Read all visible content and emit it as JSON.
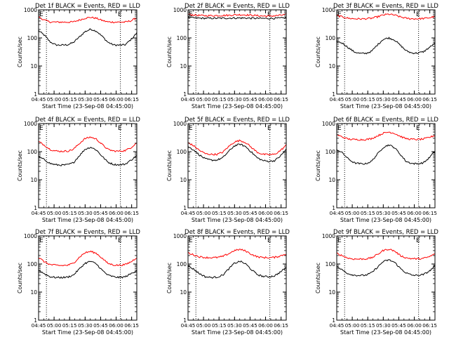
{
  "chart_data": [
    {
      "type": "line",
      "title": "Det 1f BLACK = Events, RED = LLD",
      "xlabel": "Start Time (23-Sep-08 04:45:00)",
      "ylabel": "Counts/sec",
      "x_ticks": [
        "04:45",
        "05:00",
        "05:15",
        "05:30",
        "05:45",
        "06:00",
        "06:15"
      ],
      "y_ticks": [
        "1",
        "10",
        "100",
        "1000"
      ],
      "ylim": [
        1,
        1000
      ],
      "yscale": "log",
      "grid": false,
      "markers": [
        "E",
        "E"
      ],
      "series": [
        {
          "color": "#000000",
          "values": [
            180,
            125,
            72,
            56,
            55,
            57,
            68,
            105,
            165,
            205,
            175,
            115,
            70,
            56,
            55,
            57,
            88,
            150
          ]
        },
        {
          "color": "#ff0000",
          "values": [
            560,
            430,
            370,
            365,
            365,
            365,
            370,
            430,
            500,
            540,
            500,
            420,
            370,
            365,
            365,
            365,
            410,
            520
          ]
        }
      ]
    },
    {
      "type": "line",
      "title": "Det 2f BLACK = Events, RED = LLD",
      "xlabel": "Start Time (23-Sep-08 04:45:00)",
      "ylabel": "Counts/sec",
      "x_ticks": [
        "04:45",
        "05:00",
        "05:15",
        "05:30",
        "05:45",
        "06:00",
        "06:15"
      ],
      "y_ticks": [
        "1",
        "10",
        "100",
        "1000"
      ],
      "ylim": [
        1,
        1000
      ],
      "yscale": "log",
      "grid": false,
      "markers": [
        "E",
        "E"
      ],
      "series": [
        {
          "color": "#000000",
          "values": [
            540,
            515,
            505,
            500,
            500,
            500,
            505,
            505,
            510,
            512,
            508,
            502,
            498,
            495,
            495,
            500,
            505,
            525
          ]
        },
        {
          "color": "#ff0000",
          "values": [
            690,
            650,
            630,
            620,
            620,
            625,
            630,
            640,
            660,
            670,
            660,
            640,
            620,
            600,
            600,
            610,
            640,
            680
          ]
        }
      ]
    },
    {
      "type": "line",
      "title": "Det 3f BLACK = Events, RED = LLD",
      "xlabel": "Start Time (23-Sep-08 04:45:00)",
      "ylabel": "Counts/sec",
      "x_ticks": [
        "04:45",
        "05:00",
        "05:15",
        "05:30",
        "05:45",
        "06:00",
        "06:15"
      ],
      "y_ticks": [
        "1",
        "10",
        "100",
        "1000"
      ],
      "ylim": [
        1,
        1000
      ],
      "yscale": "log",
      "grid": false,
      "markers": [
        "E",
        "E"
      ],
      "series": [
        {
          "color": "#000000",
          "values": [
            75,
            65,
            45,
            32,
            28,
            28,
            33,
            55,
            88,
            100,
            85,
            55,
            35,
            29,
            29,
            32,
            45,
            65
          ]
        },
        {
          "color": "#ff0000",
          "values": [
            620,
            560,
            500,
            480,
            475,
            480,
            500,
            560,
            650,
            700,
            650,
            560,
            500,
            480,
            480,
            490,
            520,
            580
          ]
        }
      ]
    },
    {
      "type": "line",
      "title": "Det 4f BLACK = Events, RED = LLD",
      "xlabel": "Start Time (23-Sep-08 04:45:00)",
      "ylabel": "Counts/sec",
      "x_ticks": [
        "04:45",
        "05:00",
        "05:15",
        "05:30",
        "05:45",
        "06:00",
        "06:15"
      ],
      "y_ticks": [
        "1",
        "10",
        "100",
        "1000"
      ],
      "ylim": [
        1,
        1000
      ],
      "yscale": "log",
      "grid": false,
      "markers": [
        "E",
        "E"
      ],
      "series": [
        {
          "color": "#000000",
          "values": [
            65,
            52,
            38,
            34,
            33,
            34,
            40,
            70,
            120,
            145,
            115,
            68,
            42,
            35,
            34,
            36,
            50,
            72
          ]
        },
        {
          "color": "#ff0000",
          "values": [
            230,
            170,
            120,
            105,
            103,
            105,
            120,
            190,
            290,
            330,
            280,
            180,
            120,
            105,
            104,
            110,
            140,
            210
          ]
        }
      ]
    },
    {
      "type": "line",
      "title": "Det 5f BLACK = Events, RED = LLD",
      "xlabel": "Start Time (23-Sep-08 04:45:00)",
      "ylabel": "Counts/sec",
      "x_ticks": [
        "04:45",
        "05:00",
        "05:15",
        "05:30",
        "05:45",
        "06:00",
        "06:15"
      ],
      "y_ticks": [
        "1",
        "10",
        "100",
        "1000"
      ],
      "ylim": [
        1,
        1000
      ],
      "yscale": "log",
      "grid": false,
      "markers": [
        "E",
        "E"
      ],
      "series": [
        {
          "color": "#000000",
          "values": [
            150,
            115,
            75,
            55,
            50,
            50,
            60,
            100,
            160,
            185,
            150,
            95,
            60,
            48,
            45,
            48,
            70,
            120
          ]
        },
        {
          "color": "#ff0000",
          "values": [
            210,
            160,
            110,
            85,
            80,
            80,
            95,
            150,
            220,
            250,
            210,
            140,
            95,
            80,
            78,
            80,
            110,
            170
          ]
        }
      ]
    },
    {
      "type": "line",
      "title": "Det 6f BLACK = Events, RED = LLD",
      "xlabel": "Start Time (23-Sep-08 04:45:00)",
      "ylabel": "Counts/sec",
      "x_ticks": [
        "04:45",
        "05:00",
        "05:15",
        "05:30",
        "05:45",
        "06:00",
        "06:15"
      ],
      "y_ticks": [
        "1",
        "10",
        "100",
        "1000"
      ],
      "ylim": [
        1,
        1000
      ],
      "yscale": "log",
      "grid": false,
      "markers": [
        "E",
        "E"
      ],
      "series": [
        {
          "color": "#000000",
          "values": [
            120,
            90,
            55,
            40,
            37,
            37,
            45,
            80,
            140,
            175,
            140,
            80,
            45,
            38,
            37,
            40,
            60,
            105
          ]
        },
        {
          "color": "#ff0000",
          "values": [
            400,
            330,
            280,
            270,
            268,
            270,
            290,
            360,
            450,
            500,
            450,
            350,
            290,
            275,
            272,
            280,
            320,
            380
          ]
        }
      ]
    },
    {
      "type": "line",
      "title": "Det 7f BLACK = Events, RED = LLD",
      "xlabel": "Start Time (23-Sep-08 04:45:00)",
      "ylabel": "Counts/sec",
      "x_ticks": [
        "04:45",
        "05:00",
        "05:15",
        "05:30",
        "05:45",
        "06:00",
        "06:15"
      ],
      "y_ticks": [
        "1",
        "10",
        "100",
        "1000"
      ],
      "ylim": [
        1,
        1000
      ],
      "yscale": "log",
      "grid": false,
      "markers": [
        "E",
        "E"
      ],
      "series": [
        {
          "color": "#000000",
          "values": [
            60,
            45,
            35,
            33,
            33,
            34,
            40,
            65,
            105,
            125,
            100,
            60,
            40,
            35,
            33,
            35,
            45,
            60
          ]
        },
        {
          "color": "#ff0000",
          "values": [
            170,
            120,
            95,
            90,
            88,
            90,
            105,
            170,
            250,
            280,
            240,
            160,
            105,
            92,
            90,
            95,
            120,
            170
          ]
        }
      ]
    },
    {
      "type": "line",
      "title": "Det 8f BLACK = Events, RED = LLD",
      "xlabel": "Start Time (23-Sep-08 04:45:00)",
      "ylabel": "Counts/sec",
      "x_ticks": [
        "04:45",
        "05:00",
        "05:15",
        "05:30",
        "05:45",
        "06:00",
        "06:15"
      ],
      "y_ticks": [
        "1",
        "10",
        "100",
        "1000"
      ],
      "ylim": [
        1,
        1000
      ],
      "yscale": "log",
      "grid": false,
      "markers": [
        "E",
        "E"
      ],
      "series": [
        {
          "color": "#000000",
          "values": [
            85,
            65,
            45,
            35,
            33,
            34,
            40,
            65,
            105,
            125,
            100,
            62,
            42,
            36,
            35,
            38,
            52,
            75
          ]
        },
        {
          "color": "#ff0000",
          "values": [
            250,
            210,
            180,
            170,
            168,
            170,
            185,
            230,
            300,
            330,
            290,
            220,
            180,
            170,
            168,
            172,
            195,
            230
          ]
        }
      ]
    },
    {
      "type": "line",
      "title": "Det 9f BLACK = Events, RED = LLD",
      "xlabel": "Start Time (23-Sep-08 04:45:00)",
      "ylabel": "Counts/sec",
      "x_ticks": [
        "04:45",
        "05:00",
        "05:15",
        "05:30",
        "05:45",
        "06:00",
        "06:15"
      ],
      "y_ticks": [
        "1",
        "10",
        "100",
        "1000"
      ],
      "ylim": [
        1,
        1000
      ],
      "yscale": "log",
      "grid": false,
      "markers": [
        "E",
        "E"
      ],
      "series": [
        {
          "color": "#000000",
          "values": [
            80,
            60,
            45,
            40,
            39,
            40,
            48,
            75,
            120,
            140,
            115,
            70,
            48,
            40,
            39,
            42,
            55,
            85
          ]
        },
        {
          "color": "#ff0000",
          "values": [
            240,
            195,
            160,
            150,
            150,
            152,
            165,
            215,
            300,
            340,
            290,
            200,
            165,
            155,
            152,
            158,
            180,
            230
          ]
        }
      ]
    }
  ]
}
